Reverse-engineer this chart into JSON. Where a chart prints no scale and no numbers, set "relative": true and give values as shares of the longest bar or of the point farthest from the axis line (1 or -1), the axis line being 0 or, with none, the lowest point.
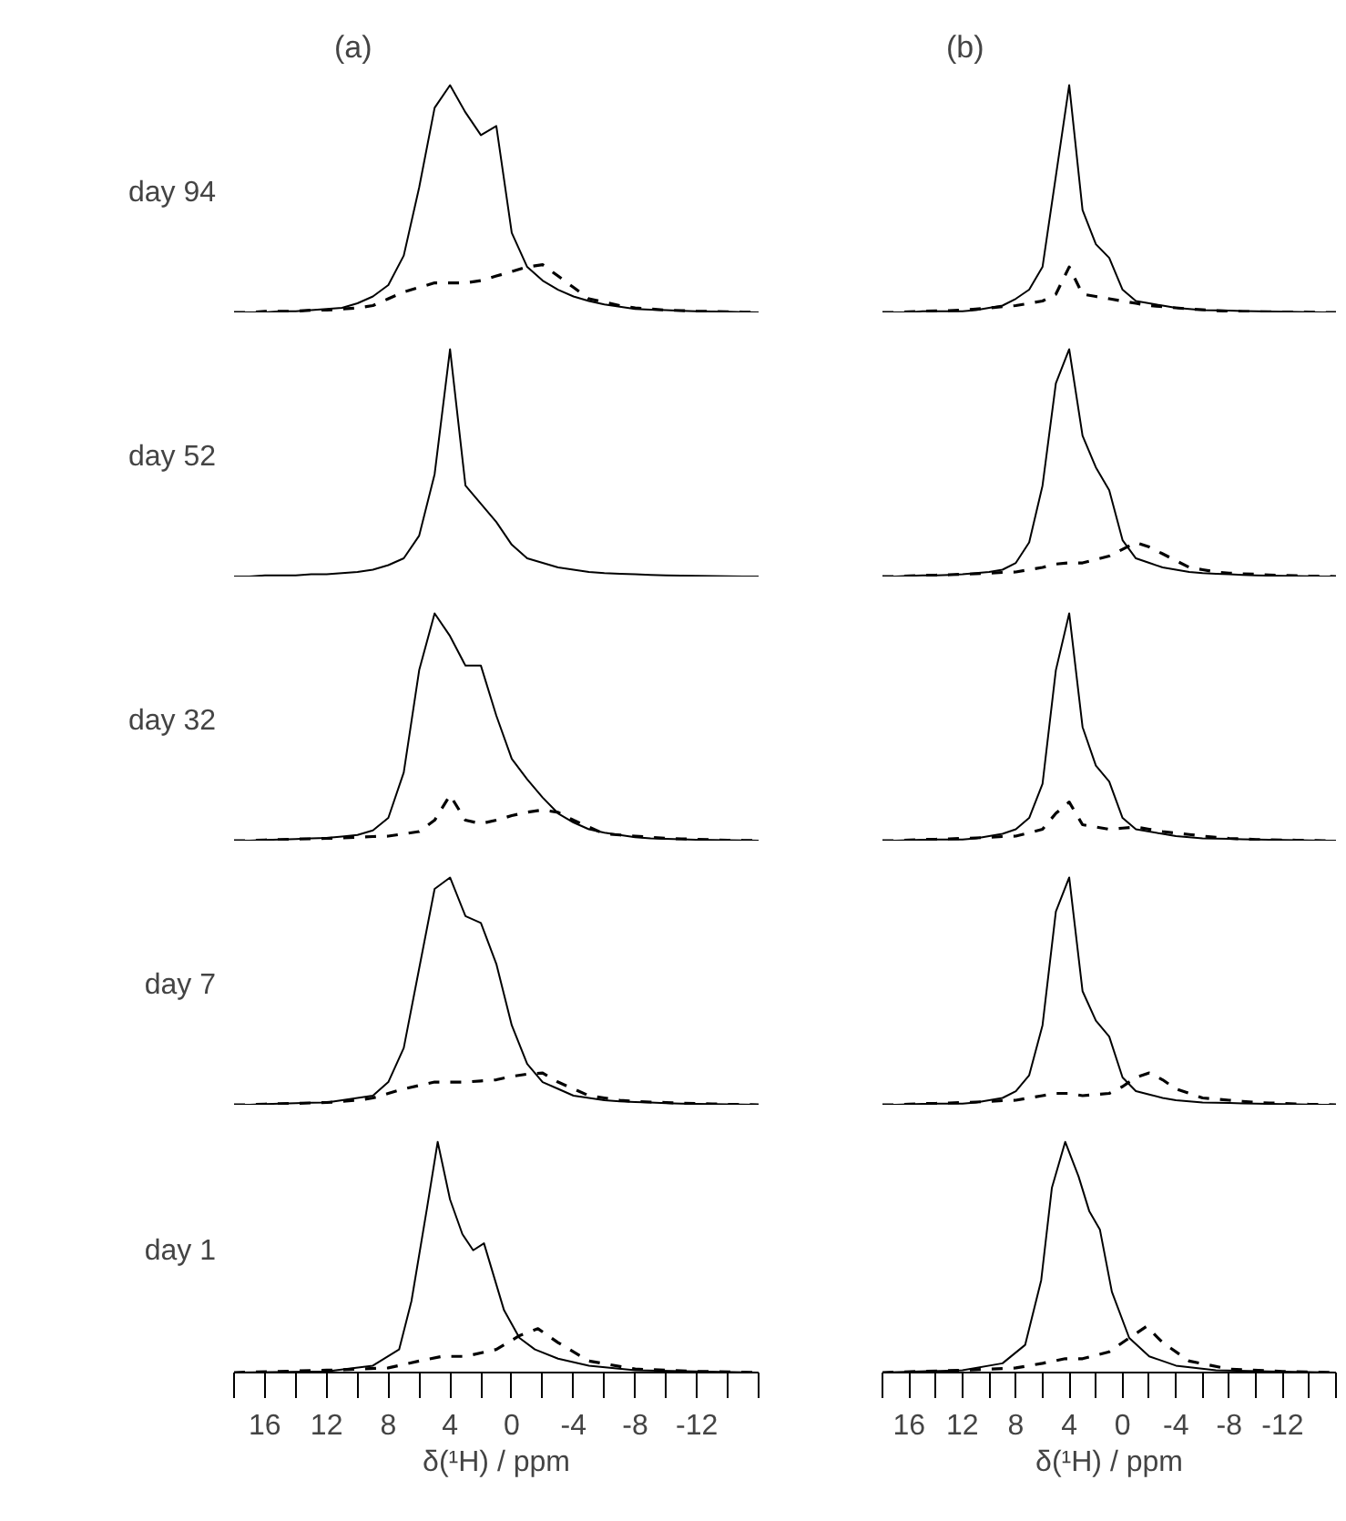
{
  "chart_data": [
    {
      "type": "line",
      "title": "(a)",
      "ylabel": "day 94",
      "relative": true,
      "grid": false,
      "tick_labels": false,
      "categories": [
        null,
        null,
        null,
        null,
        null,
        null,
        null,
        null,
        null,
        null,
        null,
        null,
        null,
        null,
        null,
        null,
        null,
        null,
        null,
        null,
        null,
        null,
        null,
        null,
        null,
        null,
        null,
        null,
        null,
        null,
        null,
        null,
        null,
        null,
        null
      ],
      "series": [
        {
          "color": "#000000",
          "line_style": "solid",
          "values": [
            0,
            0,
            0,
            0.005,
            0.005,
            0.01,
            0.015,
            0.02,
            0.04,
            0.07,
            0.12,
            0.25,
            0.55,
            0.9,
            1,
            0.88,
            0.78,
            0.82,
            0.35,
            0.2,
            0.14,
            0.1,
            0.07,
            0.05,
            0.035,
            0.025,
            0.015,
            0.012,
            0.01,
            0.007,
            0.005,
            0.004,
            0.003,
            0.001,
            0
          ]
        },
        {
          "color": "#000000",
          "line_style": "dashed",
          "values": [
            0,
            0,
            0.005,
            0.005,
            0.005,
            0.01,
            0.01,
            0.015,
            0.02,
            0.03,
            0.06,
            0.09,
            0.11,
            0.13,
            0.13,
            0.13,
            0.14,
            0.16,
            0.18,
            0.2,
            0.21,
            0.16,
            0.11,
            0.06,
            0.045,
            0.03,
            0.02,
            0.015,
            0.01,
            0.008,
            0.005,
            0.004,
            0.003,
            0.001,
            0
          ]
        }
      ]
    },
    {
      "type": "line",
      "title": "(b)",
      "relative": true,
      "grid": false,
      "tick_labels": false,
      "categories": [
        null,
        null,
        null,
        null,
        null,
        null,
        null,
        null,
        null,
        null,
        null,
        null,
        null,
        null,
        null,
        null,
        null,
        null,
        null,
        null,
        null,
        null,
        null,
        null,
        null,
        null,
        null,
        null,
        null,
        null,
        null,
        null,
        null,
        null,
        null
      ],
      "series": [
        {
          "color": "#000000",
          "line_style": "solid",
          "values": [
            0,
            0,
            0,
            0.005,
            0.005,
            0.005,
            0.005,
            0.01,
            0.02,
            0.03,
            0.06,
            0.1,
            0.2,
            0.6,
            1,
            0.45,
            0.3,
            0.24,
            0.1,
            0.05,
            0.04,
            0.03,
            0.02,
            0.015,
            0.01,
            0.009,
            0.008,
            0.006,
            0.005,
            0.004,
            0.003,
            0.002,
            0.001,
            0,
            0
          ]
        },
        {
          "color": "#000000",
          "line_style": "dashed",
          "values": [
            0,
            0,
            0.003,
            0.005,
            0.007,
            0.008,
            0.01,
            0.015,
            0.02,
            0.025,
            0.03,
            0.04,
            0.05,
            0.08,
            0.2,
            0.08,
            0.07,
            0.06,
            0.05,
            0.04,
            0.03,
            0.025,
            0.02,
            0.015,
            0.012,
            0.008,
            0.005,
            0.004,
            0.003,
            0.003,
            0.002,
            0.002,
            0.001,
            0,
            0
          ]
        }
      ]
    },
    {
      "type": "line",
      "ylabel": "day 52",
      "relative": true,
      "grid": false,
      "tick_labels": false,
      "categories": [
        null,
        null,
        null,
        null,
        null,
        null,
        null,
        null,
        null,
        null,
        null,
        null,
        null,
        null,
        null,
        null,
        null,
        null,
        null,
        null,
        null,
        null,
        null,
        null,
        null,
        null,
        null,
        null,
        null,
        null,
        null,
        null,
        null,
        null,
        null
      ],
      "series": [
        {
          "color": "#000000",
          "line_style": "solid",
          "values": [
            0,
            0,
            0.005,
            0.005,
            0.005,
            0.01,
            0.01,
            0.015,
            0.02,
            0.03,
            0.05,
            0.08,
            0.18,
            0.45,
            1,
            0.4,
            0.32,
            0.24,
            0.14,
            0.08,
            0.06,
            0.04,
            0.03,
            0.02,
            0.015,
            0.012,
            0.01,
            0.007,
            0.005,
            0.004,
            0.003,
            0.002,
            0.001,
            0,
            0
          ]
        }
      ]
    },
    {
      "type": "line",
      "relative": true,
      "grid": false,
      "tick_labels": false,
      "categories": [
        null,
        null,
        null,
        null,
        null,
        null,
        null,
        null,
        null,
        null,
        null,
        null,
        null,
        null,
        null,
        null,
        null,
        null,
        null,
        null,
        null,
        null,
        null,
        null,
        null,
        null,
        null,
        null,
        null,
        null,
        null,
        null,
        null,
        null,
        null
      ],
      "series": [
        {
          "color": "#000000",
          "line_style": "solid",
          "values": [
            0,
            0,
            0.003,
            0.005,
            0.005,
            0.007,
            0.01,
            0.015,
            0.02,
            0.03,
            0.06,
            0.15,
            0.4,
            0.85,
            1,
            0.62,
            0.48,
            0.38,
            0.16,
            0.08,
            0.06,
            0.04,
            0.03,
            0.02,
            0.015,
            0.012,
            0.01,
            0.007,
            0.005,
            0.004,
            0.003,
            0.002,
            0.001,
            0,
            0
          ]
        },
        {
          "color": "#000000",
          "line_style": "dashed",
          "values": [
            0,
            0,
            0.003,
            0.005,
            0.006,
            0.008,
            0.01,
            0.012,
            0.015,
            0.018,
            0.02,
            0.03,
            0.04,
            0.055,
            0.06,
            0.06,
            0.075,
            0.09,
            0.12,
            0.15,
            0.13,
            0.1,
            0.07,
            0.04,
            0.03,
            0.02,
            0.015,
            0.012,
            0.01,
            0.007,
            0.005,
            0.004,
            0.002,
            0.001,
            0
          ]
        }
      ]
    },
    {
      "type": "line",
      "ylabel": "day 32",
      "relative": true,
      "grid": false,
      "tick_labels": false,
      "categories": [
        null,
        null,
        null,
        null,
        null,
        null,
        null,
        null,
        null,
        null,
        null,
        null,
        null,
        null,
        null,
        null,
        null,
        null,
        null,
        null,
        null,
        null,
        null,
        null,
        null,
        null,
        null,
        null,
        null,
        null,
        null,
        null,
        null,
        null,
        null
      ],
      "series": [
        {
          "color": "#000000",
          "line_style": "solid",
          "values": [
            0,
            0,
            0.003,
            0.005,
            0.007,
            0.01,
            0.012,
            0.018,
            0.025,
            0.045,
            0.1,
            0.3,
            0.75,
            1,
            0.9,
            0.77,
            0.77,
            0.55,
            0.36,
            0.27,
            0.19,
            0.12,
            0.08,
            0.05,
            0.035,
            0.025,
            0.015,
            0.01,
            0.008,
            0.006,
            0.004,
            0.003,
            0.002,
            0.001,
            0
          ]
        },
        {
          "color": "#000000",
          "line_style": "dashed",
          "values": [
            0,
            0,
            0.003,
            0.005,
            0.007,
            0.008,
            0.01,
            0.012,
            0.015,
            0.018,
            0.02,
            0.03,
            0.04,
            0.09,
            0.2,
            0.09,
            0.075,
            0.09,
            0.11,
            0.125,
            0.135,
            0.125,
            0.09,
            0.06,
            0.03,
            0.025,
            0.02,
            0.015,
            0.01,
            0.008,
            0.006,
            0.004,
            0.002,
            0.001,
            0
          ]
        }
      ]
    },
    {
      "type": "line",
      "relative": true,
      "grid": false,
      "tick_labels": false,
      "categories": [
        null,
        null,
        null,
        null,
        null,
        null,
        null,
        null,
        null,
        null,
        null,
        null,
        null,
        null,
        null,
        null,
        null,
        null,
        null,
        null,
        null,
        null,
        null,
        null,
        null,
        null,
        null,
        null,
        null,
        null,
        null,
        null,
        null,
        null,
        null
      ],
      "series": [
        {
          "color": "#000000",
          "line_style": "solid",
          "values": [
            0,
            0,
            0.002,
            0.004,
            0.005,
            0.005,
            0.005,
            0.01,
            0.02,
            0.03,
            0.05,
            0.1,
            0.25,
            0.75,
            1,
            0.5,
            0.33,
            0.26,
            0.1,
            0.05,
            0.04,
            0.03,
            0.02,
            0.015,
            0.01,
            0.009,
            0.008,
            0.006,
            0.005,
            0.004,
            0.003,
            0.002,
            0.001,
            0,
            0
          ]
        },
        {
          "color": "#000000",
          "line_style": "dashed",
          "values": [
            0,
            0,
            0.003,
            0.005,
            0.006,
            0.008,
            0.01,
            0.012,
            0.015,
            0.018,
            0.02,
            0.035,
            0.05,
            0.12,
            0.17,
            0.07,
            0.06,
            0.05,
            0.055,
            0.06,
            0.05,
            0.04,
            0.033,
            0.027,
            0.02,
            0.015,
            0.01,
            0.008,
            0.005,
            0.004,
            0.003,
            0.002,
            0.001,
            0,
            0
          ]
        }
      ]
    },
    {
      "type": "line",
      "ylabel": "day 7",
      "relative": true,
      "grid": false,
      "tick_labels": false,
      "categories": [
        null,
        null,
        null,
        null,
        null,
        null,
        null,
        null,
        null,
        null,
        null,
        null,
        null,
        null,
        null,
        null,
        null,
        null,
        null,
        null,
        null,
        null,
        null,
        null,
        null,
        null,
        null,
        null,
        null,
        null,
        null,
        null,
        null,
        null,
        null
      ],
      "series": [
        {
          "color": "#000000",
          "line_style": "solid",
          "values": [
            0,
            0,
            0.003,
            0.005,
            0.007,
            0.009,
            0.01,
            0.02,
            0.03,
            0.04,
            0.1,
            0.25,
            0.6,
            0.95,
            1,
            0.83,
            0.8,
            0.62,
            0.35,
            0.18,
            0.1,
            0.07,
            0.04,
            0.03,
            0.02,
            0.015,
            0.012,
            0.01,
            0.007,
            0.005,
            0.004,
            0.003,
            0.002,
            0.001,
            0
          ]
        },
        {
          "color": "#000000",
          "line_style": "dashed",
          "values": [
            0,
            0,
            0.003,
            0.005,
            0.006,
            0.008,
            0.01,
            0.015,
            0.02,
            0.03,
            0.05,
            0.07,
            0.085,
            0.1,
            0.1,
            0.1,
            0.105,
            0.11,
            0.125,
            0.135,
            0.14,
            0.1,
            0.07,
            0.04,
            0.03,
            0.02,
            0.015,
            0.012,
            0.01,
            0.007,
            0.005,
            0.004,
            0.002,
            0.001,
            0
          ]
        }
      ]
    },
    {
      "type": "line",
      "relative": true,
      "grid": false,
      "tick_labels": false,
      "categories": [
        null,
        null,
        null,
        null,
        null,
        null,
        null,
        null,
        null,
        null,
        null,
        null,
        null,
        null,
        null,
        null,
        null,
        null,
        null,
        null,
        null,
        null,
        null,
        null,
        null,
        null,
        null,
        null,
        null,
        null,
        null,
        null,
        null,
        null,
        null
      ],
      "series": [
        {
          "color": "#000000",
          "line_style": "solid",
          "values": [
            0,
            0,
            0.002,
            0.004,
            0.005,
            0.005,
            0.005,
            0.01,
            0.02,
            0.03,
            0.06,
            0.13,
            0.35,
            0.85,
            1,
            0.5,
            0.37,
            0.3,
            0.12,
            0.06,
            0.045,
            0.03,
            0.02,
            0.015,
            0.01,
            0.009,
            0.008,
            0.006,
            0.005,
            0.004,
            0.003,
            0.002,
            0.001,
            0,
            0
          ]
        },
        {
          "color": "#000000",
          "line_style": "dashed",
          "values": [
            0,
            0,
            0.003,
            0.005,
            0.006,
            0.008,
            0.01,
            0.012,
            0.015,
            0.018,
            0.02,
            0.03,
            0.04,
            0.05,
            0.05,
            0.04,
            0.045,
            0.05,
            0.08,
            0.12,
            0.14,
            0.11,
            0.07,
            0.05,
            0.03,
            0.025,
            0.02,
            0.015,
            0.01,
            0.008,
            0.006,
            0.004,
            0.002,
            0.001,
            0
          ]
        }
      ]
    },
    {
      "type": "line",
      "ylabel": "day 1",
      "xlabel": "δ(¹H) / ppm",
      "relative": true,
      "grid": false,
      "tick_labels": "x",
      "xlim": [
        18,
        -16
      ],
      "xticks": [
        {
          "value": 18,
          "label": null
        },
        16,
        {
          "value": 14,
          "label": null
        },
        12,
        {
          "value": 10,
          "label": null
        },
        8,
        {
          "value": 6,
          "label": null
        },
        4,
        {
          "value": 2,
          "label": null
        },
        0,
        {
          "value": -2,
          "label": null
        },
        -4,
        {
          "value": -6,
          "label": null
        },
        -8,
        {
          "value": -10,
          "label": null
        },
        -12,
        {
          "value": -14,
          "label": null
        },
        {
          "value": -16,
          "label": null
        }
      ],
      "series": [
        {
          "color": "#000000",
          "line_style": "solid",
          "x": [
            18,
            12,
            9,
            7.3,
            6.5,
            5.5,
            4.8,
            4,
            3.2,
            2.5,
            1.8,
            0.5,
            -0.5,
            -1.5,
            -3,
            -5,
            -8,
            -12,
            -16
          ],
          "values": [
            0,
            0.005,
            0.03,
            0.1,
            0.31,
            0.71,
            1,
            0.75,
            0.6,
            0.53,
            0.56,
            0.27,
            0.15,
            0.1,
            0.06,
            0.03,
            0.01,
            0.005,
            0
          ]
        },
        {
          "color": "#000000",
          "line_style": "dashed",
          "x": [
            18,
            12,
            8,
            6,
            4.5,
            3,
            1,
            -0.5,
            -1.7,
            -3,
            -5,
            -8,
            -12,
            -16
          ],
          "values": [
            0,
            0.01,
            0.02,
            0.05,
            0.07,
            0.07,
            0.1,
            0.16,
            0.19,
            0.13,
            0.05,
            0.015,
            0.005,
            0
          ]
        }
      ]
    },
    {
      "type": "line",
      "xlabel": "δ(¹H) / ppm",
      "relative": true,
      "grid": false,
      "tick_labels": "x",
      "xlim": [
        18,
        -16
      ],
      "xticks": [
        {
          "value": 18,
          "label": null
        },
        16,
        {
          "value": 14,
          "label": null
        },
        12,
        {
          "value": 10,
          "label": null
        },
        8,
        {
          "value": 6,
          "label": null
        },
        4,
        {
          "value": 2,
          "label": null
        },
        0,
        {
          "value": -2,
          "label": null
        },
        -4,
        {
          "value": -6,
          "label": null
        },
        -8,
        {
          "value": -10,
          "label": null
        },
        -12,
        {
          "value": -14,
          "label": null
        },
        {
          "value": -16,
          "label": null
        }
      ],
      "series": [
        {
          "color": "#000000",
          "line_style": "solid",
          "x": [
            18,
            12,
            9,
            7.3,
            6.1,
            5.3,
            4.3,
            3.3,
            2.5,
            1.7,
            0.8,
            -0.5,
            -2,
            -4,
            -7,
            -11,
            -16
          ],
          "values": [
            0,
            0.01,
            0.04,
            0.12,
            0.4,
            0.8,
            1,
            0.85,
            0.7,
            0.62,
            0.35,
            0.15,
            0.07,
            0.03,
            0.01,
            0.005,
            0
          ]
        },
        {
          "color": "#000000",
          "line_style": "dashed",
          "x": [
            18,
            12,
            8,
            6,
            4.3,
            3,
            1,
            -0.5,
            -1.8,
            -3,
            -5,
            -8,
            -12,
            -16
          ],
          "values": [
            0,
            0.01,
            0.02,
            0.04,
            0.06,
            0.06,
            0.09,
            0.15,
            0.2,
            0.13,
            0.05,
            0.015,
            0.005,
            0
          ]
        }
      ]
    }
  ]
}
